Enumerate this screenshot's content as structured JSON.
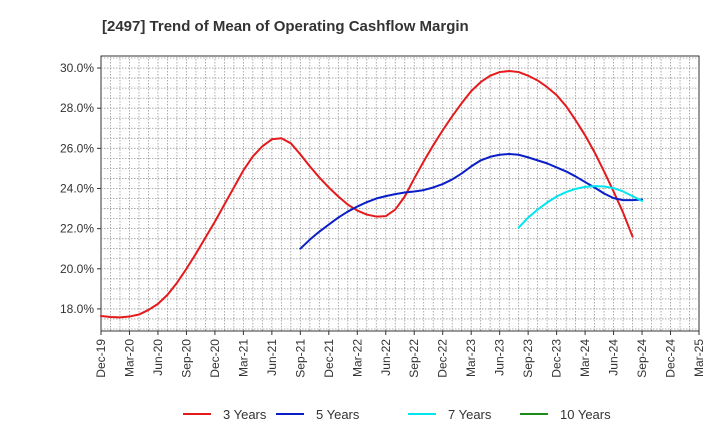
{
  "chart_data": {
    "type": "line",
    "title": "[2497]  Trend of Mean of Operating Cashflow Margin",
    "xlabel": "",
    "ylabel": "",
    "ylim": [
      16.9,
      30.6
    ],
    "yticks": [
      18.0,
      20.0,
      22.0,
      24.0,
      26.0,
      28.0,
      30.0
    ],
    "ytick_labels": [
      "18.0%",
      "20.0%",
      "22.0%",
      "24.0%",
      "26.0%",
      "28.0%",
      "30.0%"
    ],
    "xtick_labels": [
      "Dec-19",
      "Mar-20",
      "Jun-20",
      "Sep-20",
      "Dec-20",
      "Mar-21",
      "Jun-21",
      "Sep-21",
      "Dec-21",
      "Mar-22",
      "Jun-22",
      "Sep-22",
      "Dec-22",
      "Mar-23",
      "Jun-23",
      "Sep-23",
      "Dec-23",
      "Mar-24",
      "Jun-24",
      "Sep-24",
      "Dec-24",
      "Mar-25"
    ],
    "grid": true,
    "legend_position": "bottom",
    "series": [
      {
        "name": "3 Years",
        "color": "#e41a1c",
        "points": [
          [
            "Dec-19",
            17.65
          ],
          [
            "Jan-20",
            17.6
          ],
          [
            "Feb-20",
            17.58
          ],
          [
            "Mar-20",
            17.62
          ],
          [
            "Apr-20",
            17.72
          ],
          [
            "May-20",
            17.95
          ],
          [
            "Jun-20",
            18.25
          ],
          [
            "Jul-20",
            18.7
          ],
          [
            "Aug-20",
            19.3
          ],
          [
            "Sep-20",
            20.0
          ],
          [
            "Oct-20",
            20.75
          ],
          [
            "Nov-20",
            21.55
          ],
          [
            "Dec-20",
            22.35
          ],
          [
            "Jan-21",
            23.2
          ],
          [
            "Feb-21",
            24.05
          ],
          [
            "Mar-21",
            24.9
          ],
          [
            "Apr-21",
            25.6
          ],
          [
            "May-21",
            26.1
          ],
          [
            "Jun-21",
            26.45
          ],
          [
            "Jul-21",
            26.5
          ],
          [
            "Aug-21",
            26.25
          ],
          [
            "Sep-21",
            25.7
          ],
          [
            "Oct-21",
            25.1
          ],
          [
            "Nov-21",
            24.55
          ],
          [
            "Dec-21",
            24.05
          ],
          [
            "Jan-22",
            23.6
          ],
          [
            "Feb-22",
            23.2
          ],
          [
            "Mar-22",
            22.9
          ],
          [
            "Apr-22",
            22.7
          ],
          [
            "May-22",
            22.6
          ],
          [
            "Jun-22",
            22.62
          ],
          [
            "Jul-22",
            22.95
          ],
          [
            "Aug-22",
            23.6
          ],
          [
            "Sep-22",
            24.5
          ],
          [
            "Oct-22",
            25.35
          ],
          [
            "Nov-22",
            26.15
          ],
          [
            "Dec-22",
            26.9
          ],
          [
            "Jan-23",
            27.6
          ],
          [
            "Feb-23",
            28.25
          ],
          [
            "Mar-23",
            28.85
          ],
          [
            "Apr-23",
            29.3
          ],
          [
            "May-23",
            29.62
          ],
          [
            "Jun-23",
            29.8
          ],
          [
            "Jul-23",
            29.85
          ],
          [
            "Aug-23",
            29.8
          ],
          [
            "Sep-23",
            29.62
          ],
          [
            "Oct-23",
            29.38
          ],
          [
            "Nov-23",
            29.05
          ],
          [
            "Dec-23",
            28.65
          ],
          [
            "Jan-24",
            28.1
          ],
          [
            "Feb-24",
            27.4
          ],
          [
            "Mar-24",
            26.65
          ],
          [
            "Apr-24",
            25.8
          ],
          [
            "May-24",
            24.85
          ],
          [
            "Jun-24",
            23.85
          ],
          [
            "Jul-24",
            22.8
          ],
          [
            "Aug-24",
            21.6
          ]
        ]
      },
      {
        "name": "5 Years",
        "color": "#0a1ec8",
        "points": [
          [
            "Sep-21",
            21.0
          ],
          [
            "Oct-21",
            21.45
          ],
          [
            "Nov-21",
            21.85
          ],
          [
            "Dec-21",
            22.2
          ],
          [
            "Jan-22",
            22.55
          ],
          [
            "Feb-22",
            22.85
          ],
          [
            "Mar-22",
            23.1
          ],
          [
            "Apr-22",
            23.32
          ],
          [
            "May-22",
            23.5
          ],
          [
            "Jun-22",
            23.62
          ],
          [
            "Jul-22",
            23.72
          ],
          [
            "Aug-22",
            23.8
          ],
          [
            "Sep-22",
            23.85
          ],
          [
            "Oct-22",
            23.92
          ],
          [
            "Nov-22",
            24.05
          ],
          [
            "Dec-22",
            24.22
          ],
          [
            "Jan-23",
            24.45
          ],
          [
            "Feb-23",
            24.75
          ],
          [
            "Mar-23",
            25.1
          ],
          [
            "Apr-23",
            25.4
          ],
          [
            "May-23",
            25.58
          ],
          [
            "Jun-23",
            25.68
          ],
          [
            "Jul-23",
            25.72
          ],
          [
            "Aug-23",
            25.68
          ],
          [
            "Sep-23",
            25.55
          ],
          [
            "Oct-23",
            25.4
          ],
          [
            "Nov-23",
            25.25
          ],
          [
            "Dec-23",
            25.05
          ],
          [
            "Jan-24",
            24.85
          ],
          [
            "Feb-24",
            24.6
          ],
          [
            "Mar-24",
            24.32
          ],
          [
            "Apr-24",
            24.05
          ],
          [
            "May-24",
            23.75
          ],
          [
            "Jun-24",
            23.52
          ],
          [
            "Jul-24",
            23.42
          ],
          [
            "Aug-24",
            23.42
          ],
          [
            "Sep-24",
            23.45
          ]
        ]
      },
      {
        "name": "7 Years",
        "color": "#00e5ee",
        "points": [
          [
            "Aug-23",
            22.05
          ],
          [
            "Sep-23",
            22.55
          ],
          [
            "Oct-23",
            22.95
          ],
          [
            "Nov-23",
            23.3
          ],
          [
            "Dec-23",
            23.6
          ],
          [
            "Jan-24",
            23.82
          ],
          [
            "Feb-24",
            23.98
          ],
          [
            "Mar-24",
            24.08
          ],
          [
            "Apr-24",
            24.12
          ],
          [
            "May-24",
            24.1
          ],
          [
            "Jun-24",
            24.02
          ],
          [
            "Jul-24",
            23.85
          ],
          [
            "Aug-24",
            23.62
          ],
          [
            "Sep-24",
            23.38
          ]
        ]
      },
      {
        "name": "10 Years",
        "color": "#1a8c1a",
        "points": []
      }
    ]
  }
}
